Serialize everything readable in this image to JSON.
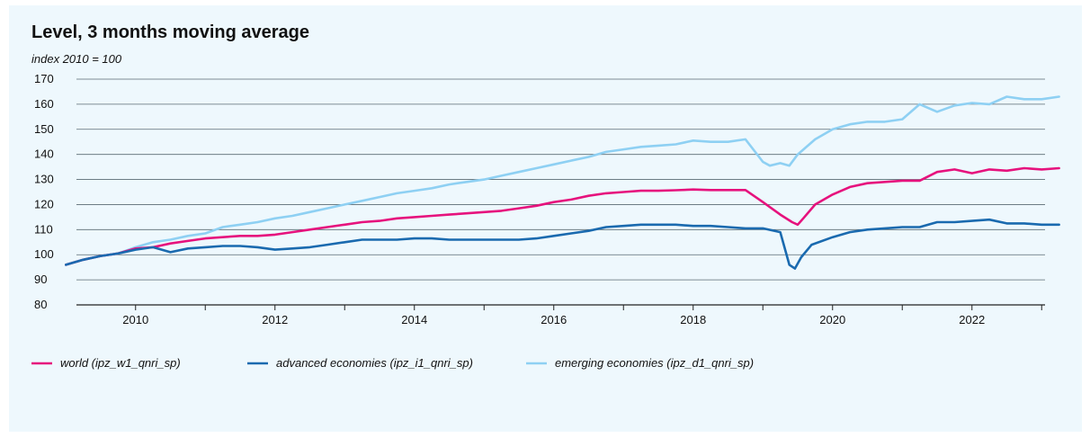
{
  "chart_data": {
    "type": "line",
    "title": "Level, 3 months moving average",
    "ylabel": "index 2010 = 100",
    "ylim": [
      80,
      170
    ],
    "yticks": [
      80,
      90,
      100,
      110,
      120,
      130,
      140,
      150,
      160,
      170
    ],
    "xlim": [
      2009.5,
      2024.1
    ],
    "xticks": [
      2010,
      2012,
      2014,
      2016,
      2018,
      2020,
      2022
    ],
    "grid": "horizontal",
    "legend_position": "bottom",
    "series": [
      {
        "name": "world (ipz_w1_qnri_sp)",
        "color": "#e6127d",
        "x": [
          2009.5,
          2009.75,
          2010.0,
          2010.25,
          2010.5,
          2010.75,
          2011.0,
          2011.25,
          2011.5,
          2011.75,
          2012.0,
          2012.25,
          2012.5,
          2012.75,
          2013.0,
          2013.25,
          2013.5,
          2013.75,
          2014.0,
          2014.25,
          2014.5,
          2014.75,
          2015.0,
          2015.25,
          2015.5,
          2015.75,
          2016.0,
          2016.25,
          2016.5,
          2016.75,
          2017.0,
          2017.25,
          2017.5,
          2017.75,
          2018.0,
          2018.25,
          2018.5,
          2018.75,
          2019.0,
          2019.25,
          2019.5,
          2019.75,
          2019.92,
          2020.0,
          2020.08,
          2020.25,
          2020.5,
          2020.75,
          2021.0,
          2021.25,
          2021.5,
          2021.75,
          2022.0,
          2022.25,
          2022.5,
          2022.75,
          2023.0,
          2023.25,
          2023.5,
          2023.75
        ],
        "values": [
          96,
          98,
          99.5,
          100.5,
          102.5,
          103,
          104.5,
          105.5,
          106.5,
          107,
          107.5,
          107.5,
          108,
          109,
          110,
          111,
          112,
          113,
          113.5,
          114.5,
          115,
          115.5,
          116,
          116.5,
          117,
          117.5,
          118.5,
          119.5,
          121,
          122,
          123.5,
          124.5,
          125,
          125.5,
          125.5,
          125.7,
          126,
          125.8,
          125.8,
          125.8,
          121,
          116,
          113,
          112,
          114.5,
          120,
          124,
          127,
          128.5,
          129,
          129.5,
          129.5,
          133,
          134,
          132.5,
          134,
          133.5,
          134.5,
          134,
          134.5
        ]
      },
      {
        "name": "advanced economies (ipz_i1_qnri_sp)",
        "color": "#1a6aaf",
        "x": [
          2009.5,
          2009.75,
          2010.0,
          2010.25,
          2010.5,
          2010.75,
          2011.0,
          2011.25,
          2011.5,
          2011.75,
          2012.0,
          2012.25,
          2012.5,
          2012.75,
          2013.0,
          2013.25,
          2013.5,
          2013.75,
          2014.0,
          2014.25,
          2014.5,
          2014.75,
          2015.0,
          2015.25,
          2015.5,
          2015.75,
          2016.0,
          2016.25,
          2016.5,
          2016.75,
          2017.0,
          2017.25,
          2017.5,
          2017.75,
          2018.0,
          2018.25,
          2018.5,
          2018.75,
          2019.0,
          2019.25,
          2019.5,
          2019.75,
          2019.88,
          2019.96,
          2020.05,
          2020.2,
          2020.5,
          2020.75,
          2021.0,
          2021.25,
          2021.5,
          2021.75,
          2022.0,
          2022.25,
          2022.5,
          2022.75,
          2023.0,
          2023.25,
          2023.5,
          2023.75
        ],
        "values": [
          96,
          98,
          99.5,
          100.5,
          102,
          103,
          101,
          102.5,
          103,
          103.5,
          103.5,
          103,
          102,
          102.5,
          103,
          104,
          105,
          106,
          106,
          106,
          106.5,
          106.5,
          106,
          106,
          106,
          106,
          106,
          106.5,
          107.5,
          108.5,
          109.5,
          111,
          111.5,
          112,
          112,
          112,
          111.5,
          111.5,
          111,
          110.5,
          110.5,
          109,
          96,
          94.5,
          99,
          104,
          107,
          109,
          110,
          110.5,
          111,
          111,
          113,
          113,
          113.5,
          114,
          112.5,
          112.5,
          112,
          112
        ]
      },
      {
        "name": "emerging economies (ipz_d1_qnri_sp)",
        "color": "#8ed0f3",
        "x": [
          2009.5,
          2009.75,
          2010.0,
          2010.25,
          2010.5,
          2010.75,
          2011.0,
          2011.25,
          2011.5,
          2011.75,
          2012.0,
          2012.25,
          2012.5,
          2012.75,
          2013.0,
          2013.25,
          2013.5,
          2013.75,
          2014.0,
          2014.25,
          2014.5,
          2014.75,
          2015.0,
          2015.25,
          2015.5,
          2015.75,
          2016.0,
          2016.25,
          2016.5,
          2016.75,
          2017.0,
          2017.25,
          2017.5,
          2017.75,
          2018.0,
          2018.25,
          2018.5,
          2018.75,
          2019.0,
          2019.25,
          2019.5,
          2019.6,
          2019.75,
          2019.88,
          2020.0,
          2020.25,
          2020.5,
          2020.75,
          2021.0,
          2021.25,
          2021.5,
          2021.75,
          2022.0,
          2022.25,
          2022.5,
          2022.75,
          2023.0,
          2023.25,
          2023.5,
          2023.75
        ],
        "values": [
          96,
          98,
          99.5,
          100.5,
          103,
          105,
          106,
          107.5,
          108.5,
          111,
          112,
          113,
          114.5,
          115.5,
          117,
          118.5,
          120,
          121.5,
          123,
          124.5,
          125.5,
          126.5,
          128,
          129,
          130,
          131.5,
          133,
          134.5,
          136,
          137.5,
          139,
          141,
          142,
          143,
          143.5,
          144,
          145.5,
          145,
          145,
          146,
          137,
          135.5,
          136.5,
          135.5,
          140,
          146,
          150,
          152,
          153,
          153,
          154,
          160,
          157,
          159.5,
          160.5,
          160,
          163,
          162,
          162,
          163
        ]
      }
    ]
  }
}
